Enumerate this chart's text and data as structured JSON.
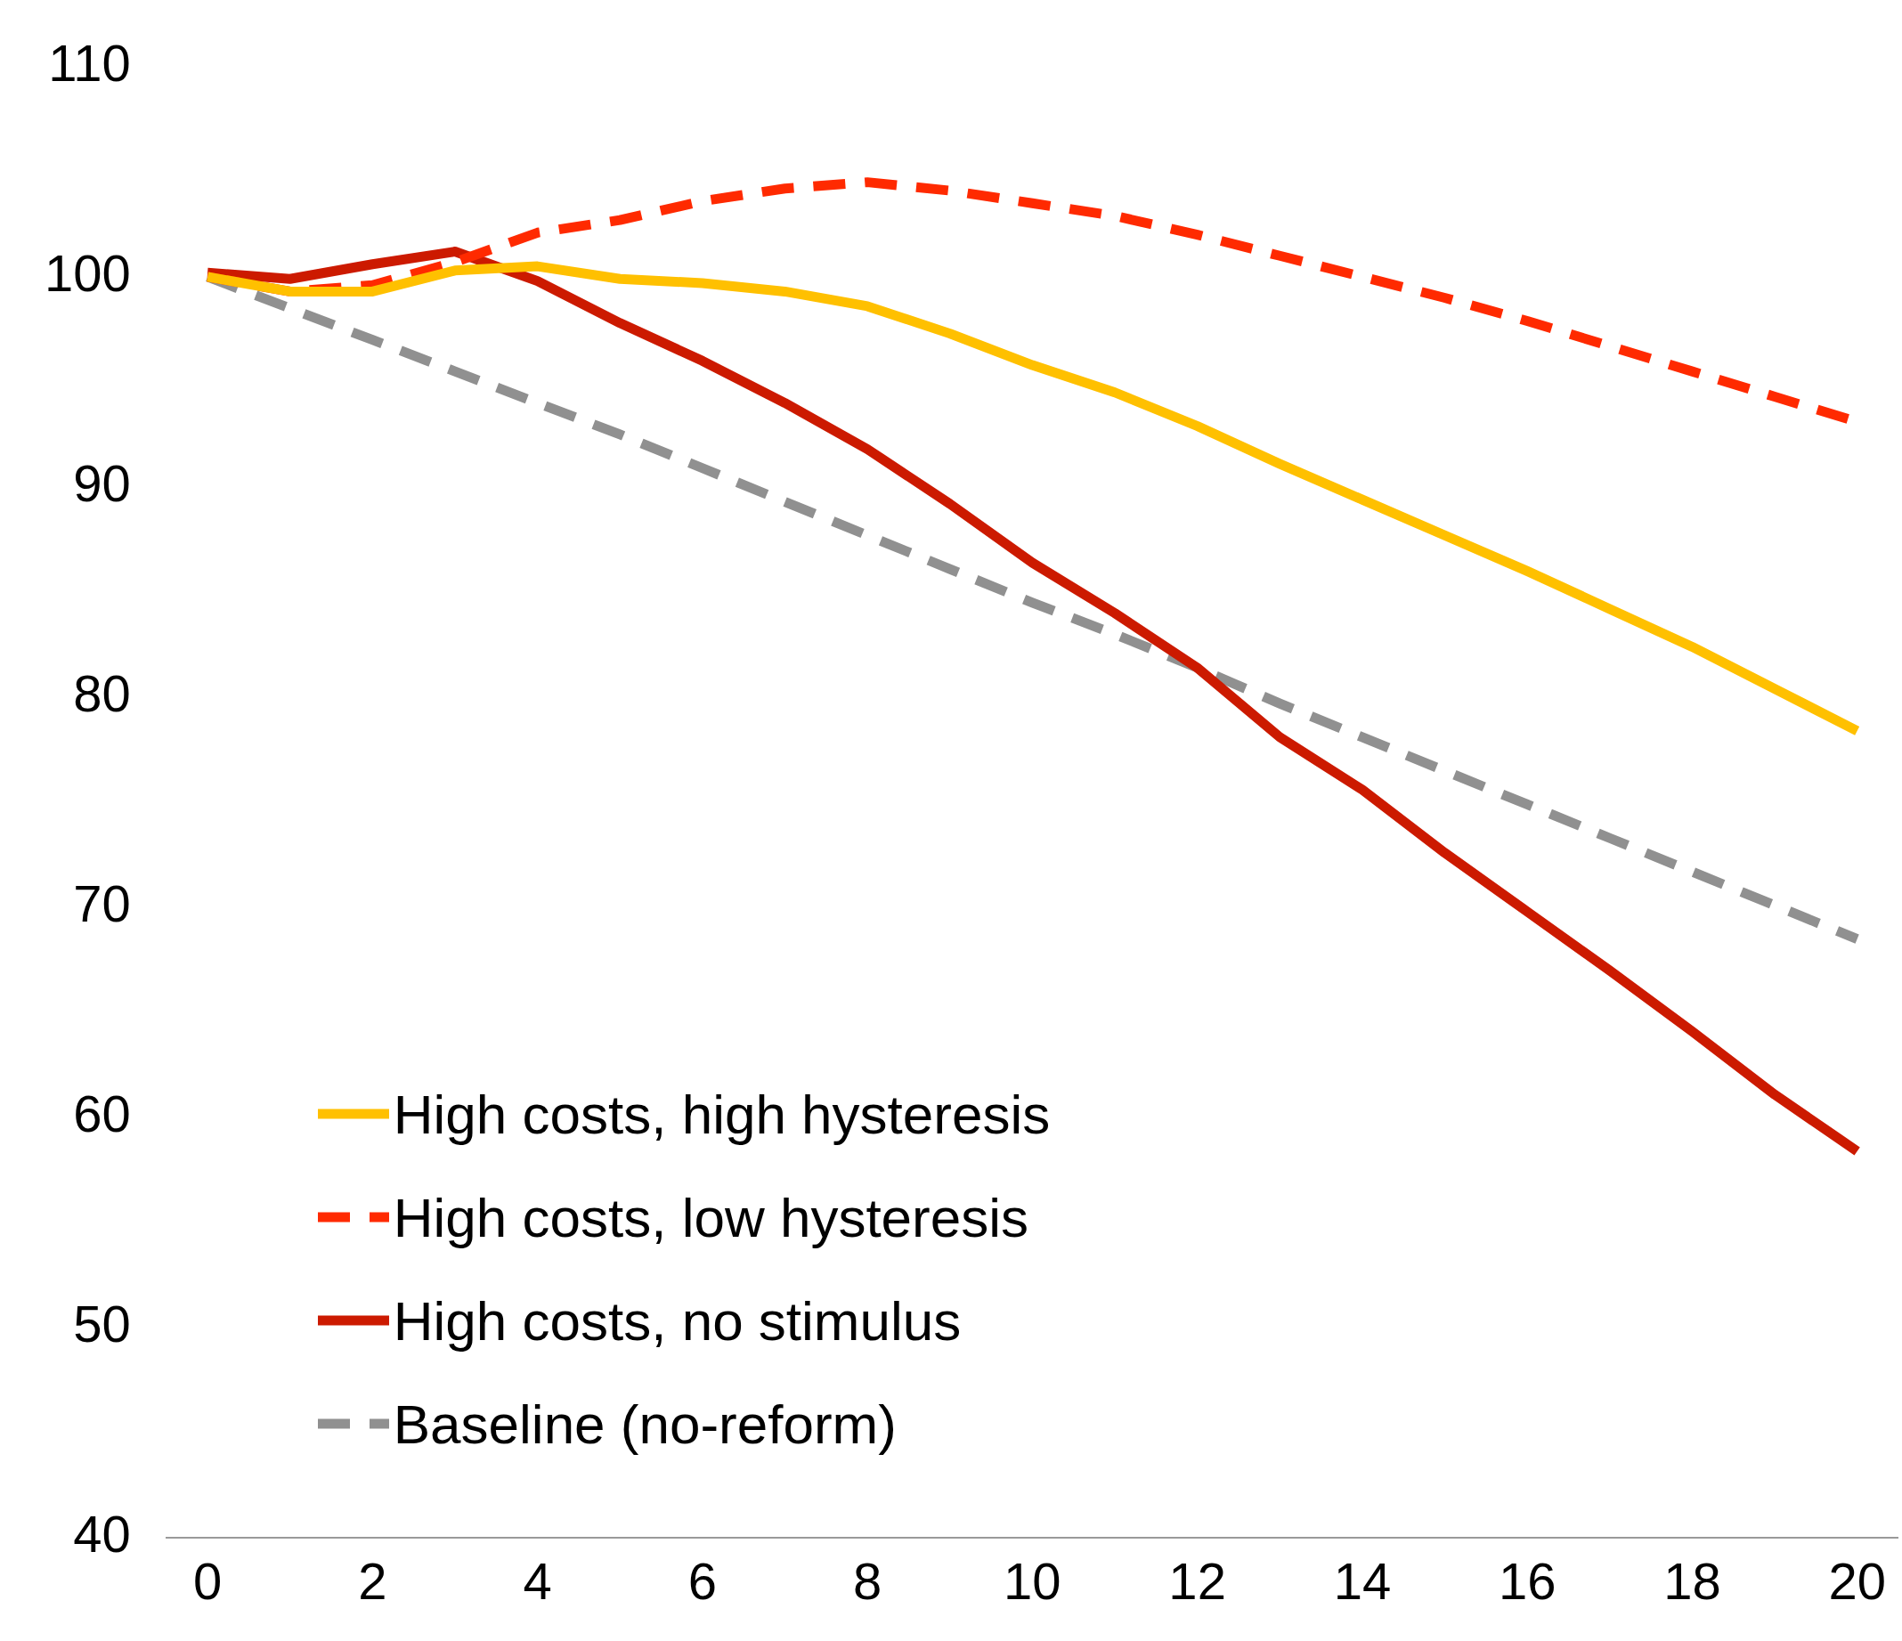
{
  "chart_data": {
    "type": "line",
    "x": [
      0,
      1,
      2,
      3,
      4,
      5,
      6,
      7,
      8,
      9,
      10,
      11,
      12,
      13,
      14,
      15,
      16,
      17,
      18,
      19,
      20
    ],
    "xlim": [
      -0.5,
      20.5
    ],
    "xticks": [
      0,
      2,
      4,
      6,
      8,
      10,
      12,
      14,
      16,
      18,
      20
    ],
    "ylim": [
      40,
      110
    ],
    "yticks": [
      40,
      50,
      60,
      70,
      80,
      90,
      100,
      110
    ],
    "grid": false,
    "legend": "bottom left",
    "marker": "none",
    "series": [
      {
        "name": "High costs, high hysteresis",
        "color": "#ffc000",
        "line_style": "solid",
        "values": [
          100,
          99.3,
          99.3,
          100.3,
          100.5,
          99.9,
          99.7,
          99.3,
          98.6,
          97.3,
          95.8,
          94.5,
          92.9,
          91.1,
          89.4,
          87.7,
          86.0,
          84.2,
          82.4,
          80.4,
          78.4
        ]
      },
      {
        "name": "High costs, low hysteresis",
        "color": "#ff2a00",
        "line_style": "dashed",
        "values": [
          100,
          99.3,
          99.6,
          100.7,
          102.1,
          102.7,
          103.6,
          104.2,
          104.5,
          104.1,
          103.5,
          102.9,
          102.0,
          101.0,
          100.0,
          99.0,
          97.9,
          96.7,
          95.5,
          94.3,
          93.1
        ]
      },
      {
        "name": "High costs, no stimulus",
        "color": "#cc1a00",
        "line_style": "solid",
        "values": [
          100.2,
          99.9,
          100.6,
          101.2,
          99.8,
          97.8,
          96.0,
          94.0,
          91.8,
          89.2,
          86.4,
          84.0,
          81.4,
          78.1,
          75.6,
          72.6,
          69.8,
          67.0,
          64.1,
          61.1,
          58.4
        ]
      },
      {
        "name": "Baseline (no-reform)",
        "color": "#909090",
        "line_style": "dashed",
        "values": [
          100,
          98.5,
          97.0,
          95.5,
          94.0,
          92.5,
          90.9,
          89.3,
          87.7,
          86.1,
          84.5,
          83.0,
          81.4,
          79.7,
          78.1,
          76.5,
          74.9,
          73.3,
          71.7,
          70.1,
          68.5
        ]
      }
    ]
  }
}
